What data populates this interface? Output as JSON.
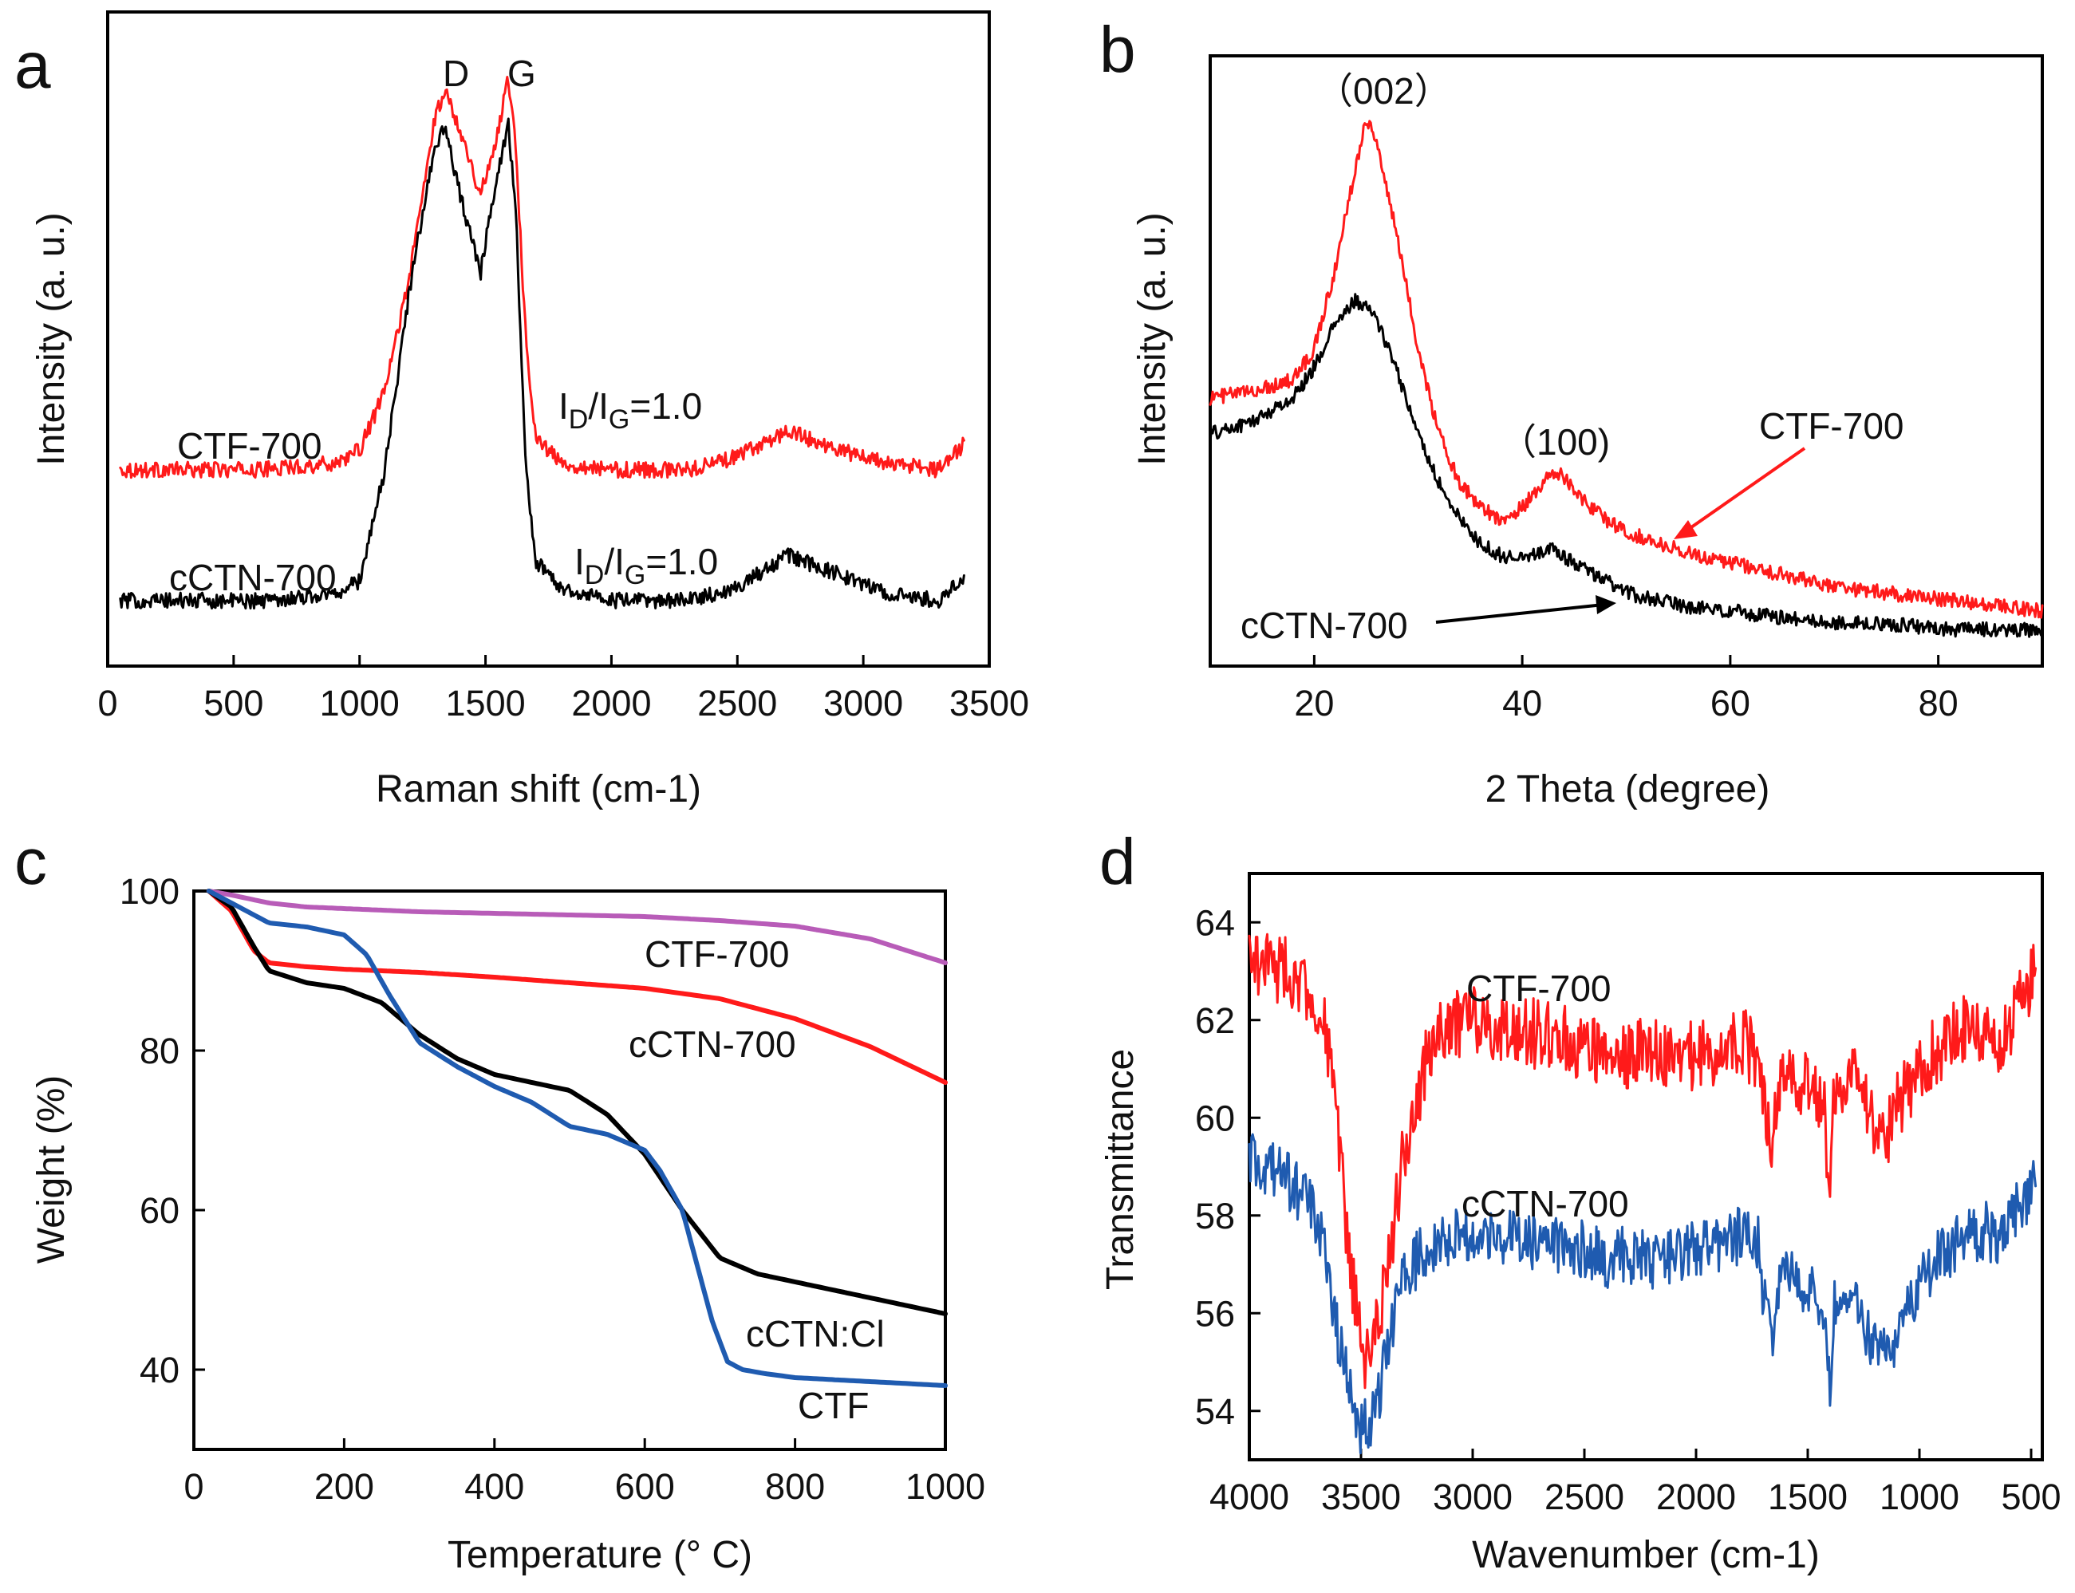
{
  "colors": {
    "red": "#ff1a1a",
    "black": "#000000",
    "blue": "#1f5bb0",
    "purple": "#b85cb8"
  },
  "chart_data": [
    {
      "id": "a",
      "panel_label": "a",
      "type": "line",
      "title": "",
      "xlabel": "Raman shift (cm-1)",
      "ylabel": "Intensity (a. u.)",
      "xlim": [
        0,
        3500
      ],
      "ylim": [
        0,
        1
      ],
      "xticks": [
        0,
        500,
        1000,
        1500,
        2000,
        2500,
        3000,
        3500
      ],
      "xtick_labels": [
        "0",
        "500",
        "1000",
        "1500",
        "2000",
        "2500",
        "3000",
        "3500"
      ],
      "yticks": [],
      "ytick_labels": [],
      "grid": false,
      "series": [
        {
          "name": "CTF-700",
          "color": "red",
          "noise": 0.012,
          "x": [
            50,
            300,
            600,
            900,
            1000,
            1100,
            1200,
            1300,
            1340,
            1400,
            1480,
            1540,
            1590,
            1620,
            1660,
            1700,
            1800,
            2000,
            2300,
            2500,
            2700,
            2900,
            3100,
            3300,
            3400
          ],
          "y": [
            0.3,
            0.3,
            0.3,
            0.31,
            0.33,
            0.42,
            0.6,
            0.84,
            0.88,
            0.82,
            0.72,
            0.8,
            0.9,
            0.8,
            0.5,
            0.35,
            0.31,
            0.3,
            0.3,
            0.32,
            0.36,
            0.33,
            0.31,
            0.3,
            0.34
          ]
        },
        {
          "name": "cCTN-700",
          "color": "black",
          "noise": 0.012,
          "x": [
            50,
            300,
            600,
            900,
            1000,
            1100,
            1200,
            1300,
            1340,
            1400,
            1480,
            1540,
            1590,
            1620,
            1660,
            1700,
            1800,
            2000,
            2300,
            2500,
            2700,
            2900,
            3100,
            3300,
            3400
          ],
          "y": [
            0.1,
            0.1,
            0.1,
            0.11,
            0.13,
            0.3,
            0.58,
            0.8,
            0.82,
            0.72,
            0.6,
            0.74,
            0.83,
            0.7,
            0.3,
            0.16,
            0.12,
            0.1,
            0.1,
            0.12,
            0.17,
            0.14,
            0.11,
            0.1,
            0.14
          ]
        }
      ],
      "series_labels": [
        "CTF-700",
        "cCTN-700"
      ],
      "annotations": [
        {
          "id": "peak_d",
          "text": "D"
        },
        {
          "id": "peak_g",
          "text": "G"
        }
      ],
      "ratio_annotations": [
        {
          "id": "ratio_ctf",
          "i": "I",
          "sub1": "D",
          "slash": "/I",
          "sub2": "G",
          "value": "=1.0"
        },
        {
          "id": "ratio_cctn",
          "i": "I",
          "sub1": "D",
          "slash": "/I",
          "sub2": "G",
          "value": "=1.0"
        }
      ]
    },
    {
      "id": "b",
      "panel_label": "b",
      "type": "line",
      "title": "",
      "xlabel": "2 Theta (degree)",
      "ylabel": "Intensity (a. u.)",
      "xlim": [
        10,
        90
      ],
      "ylim": [
        0,
        1
      ],
      "xticks": [
        20,
        40,
        60,
        80
      ],
      "xtick_labels": [
        "20",
        "40",
        "60",
        "80"
      ],
      "yticks": [],
      "ytick_labels": [],
      "grid": false,
      "series": [
        {
          "name": "CTF-700",
          "color": "red",
          "noise": 0.012,
          "x": [
            10,
            14,
            18,
            20,
            22,
            24,
            25,
            26,
            28,
            30,
            32,
            34,
            36,
            38,
            40,
            42,
            43,
            44,
            46,
            48,
            50,
            55,
            60,
            65,
            70,
            75,
            80,
            85,
            90
          ],
          "y": [
            0.44,
            0.45,
            0.47,
            0.52,
            0.65,
            0.82,
            0.9,
            0.86,
            0.7,
            0.52,
            0.38,
            0.3,
            0.26,
            0.24,
            0.26,
            0.3,
            0.32,
            0.31,
            0.27,
            0.24,
            0.22,
            0.19,
            0.17,
            0.15,
            0.13,
            0.12,
            0.11,
            0.1,
            0.09
          ]
        },
        {
          "name": "cCTN-700",
          "color": "black",
          "noise": 0.012,
          "x": [
            10,
            14,
            18,
            20,
            22,
            24,
            26,
            28,
            30,
            32,
            34,
            36,
            38,
            40,
            42,
            43,
            44,
            46,
            48,
            50,
            55,
            60,
            65,
            70,
            75,
            80,
            85,
            90
          ],
          "y": [
            0.38,
            0.4,
            0.44,
            0.49,
            0.56,
            0.6,
            0.57,
            0.48,
            0.38,
            0.3,
            0.24,
            0.2,
            0.18,
            0.18,
            0.19,
            0.19,
            0.18,
            0.16,
            0.14,
            0.12,
            0.1,
            0.09,
            0.08,
            0.07,
            0.07,
            0.06,
            0.06,
            0.06
          ]
        }
      ],
      "series_labels": [
        "CTF-700",
        "cCTN-700"
      ],
      "annotations": [
        {
          "id": "peak_002",
          "text": "（002）"
        },
        {
          "id": "peak_100",
          "text": "（100)"
        }
      ]
    },
    {
      "id": "c",
      "panel_label": "c",
      "type": "line",
      "title": "",
      "xlabel": "Temperature (° C)",
      "ylabel": "Weight (%)",
      "xlim": [
        0,
        1000
      ],
      "ylim": [
        30,
        100
      ],
      "xticks": [
        0,
        200,
        400,
        600,
        800,
        1000
      ],
      "xtick_labels": [
        "0",
        "200",
        "400",
        "600",
        "800",
        "1000"
      ],
      "yticks": [
        40,
        60,
        80,
        100
      ],
      "ytick_labels": [
        "40",
        "60",
        "80",
        "100"
      ],
      "grid": false,
      "series": [
        {
          "name": "CTF-700",
          "color": "purple",
          "noise": 0,
          "x": [
            20,
            50,
            100,
            150,
            200,
            300,
            400,
            500,
            600,
            700,
            800,
            900,
            1000
          ],
          "y": [
            100,
            99.5,
            98.5,
            98.0,
            97.8,
            97.4,
            97.2,
            97.0,
            96.8,
            96.3,
            95.6,
            94.0,
            91.0
          ]
        },
        {
          "name": "cCTN-700",
          "color": "red",
          "noise": 0,
          "x": [
            20,
            50,
            80,
            100,
            150,
            200,
            300,
            400,
            500,
            600,
            700,
            800,
            900,
            1000
          ],
          "y": [
            100,
            97.5,
            92.5,
            91.0,
            90.5,
            90.2,
            89.8,
            89.2,
            88.5,
            87.8,
            86.5,
            84.0,
            80.5,
            76.0
          ]
        },
        {
          "name": "cCTN:Cl",
          "color": "black",
          "noise": 0,
          "x": [
            20,
            50,
            80,
            100,
            150,
            200,
            250,
            300,
            350,
            400,
            450,
            500,
            550,
            600,
            650,
            700,
            750,
            800,
            900,
            1000
          ],
          "y": [
            100,
            98,
            93,
            90,
            88.5,
            87.8,
            86,
            82,
            79,
            77,
            76,
            75,
            72,
            67,
            60,
            54,
            52,
            51,
            49,
            47
          ]
        },
        {
          "name": "CTF",
          "color": "blue",
          "noise": 0,
          "x": [
            20,
            60,
            100,
            150,
            200,
            230,
            260,
            300,
            350,
            400,
            450,
            500,
            550,
            600,
            620,
            650,
            670,
            690,
            710,
            730,
            760,
            800,
            900,
            1000
          ],
          "y": [
            100,
            98,
            96,
            95.5,
            94.5,
            92,
            87,
            81,
            78,
            75.5,
            73.5,
            70.5,
            69.5,
            67.5,
            65,
            60,
            53,
            46,
            41,
            40,
            39.5,
            39,
            38.5,
            38
          ]
        }
      ],
      "series_labels": [
        "CTF-700",
        "cCTN-700",
        "cCTN:Cl",
        "CTF"
      ],
      "annotations": []
    },
    {
      "id": "d",
      "panel_label": "d",
      "type": "line",
      "title": "",
      "xlabel": "Wavenumber (cm-1)",
      "ylabel": "Transmittance",
      "xlim": [
        4000,
        450
      ],
      "ylim": [
        53,
        65
      ],
      "xticks": [
        4000,
        3500,
        3000,
        2500,
        2000,
        1500,
        1000,
        500
      ],
      "xtick_labels": [
        "4000",
        "3500",
        "3000",
        "2500",
        "2000",
        "1500",
        "1000",
        "500"
      ],
      "yticks": [
        54,
        56,
        58,
        60,
        62,
        64
      ],
      "ytick_labels": [
        "54",
        "56",
        "58",
        "60",
        "62",
        "64"
      ],
      "grid": false,
      "series": [
        {
          "name": "CTF-700",
          "color": "red",
          "noise": 0.06,
          "x": [
            4000,
            3900,
            3800,
            3700,
            3650,
            3600,
            3550,
            3500,
            3460,
            3420,
            3380,
            3300,
            3200,
            3100,
            3000,
            2800,
            2500,
            2400,
            2380,
            2360,
            2340,
            2200,
            2100,
            1900,
            1800,
            1720,
            1690,
            1660,
            1630,
            1600,
            1500,
            1430,
            1400,
            1380,
            1300,
            1250,
            1200,
            1150,
            1100,
            1000,
            900,
            800,
            700,
            650,
            600,
            550,
            500,
            480
          ],
          "y": [
            63.3,
            63.1,
            62.9,
            62.4,
            61.5,
            59.5,
            57.0,
            55.3,
            55.0,
            55.8,
            57.0,
            59.5,
            61.3,
            61.9,
            62.0,
            61.8,
            61.5,
            61.3,
            60.8,
            61.5,
            61.3,
            61.4,
            61.2,
            61.4,
            61.6,
            61.2,
            60.2,
            59.6,
            60.8,
            61.0,
            60.6,
            60.4,
            58.5,
            60.6,
            60.8,
            60.4,
            59.8,
            59.6,
            60.2,
            61.0,
            61.5,
            61.8,
            61.7,
            61.2,
            61.8,
            62.4,
            62.8,
            63.4
          ]
        },
        {
          "name": "cCTN-700",
          "color": "blue",
          "noise": 0.05,
          "x": [
            4000,
            3900,
            3800,
            3700,
            3650,
            3600,
            3550,
            3500,
            3460,
            3420,
            3380,
            3300,
            3200,
            3100,
            3000,
            2800,
            2500,
            2400,
            2380,
            2360,
            2200,
            2100,
            1900,
            1800,
            1720,
            1690,
            1660,
            1630,
            1600,
            1500,
            1430,
            1400,
            1380,
            1300,
            1250,
            1200,
            1150,
            1100,
            1000,
            900,
            800,
            700,
            650,
            600,
            550,
            500,
            480
          ],
          "y": [
            59.1,
            58.9,
            58.6,
            58.0,
            57.0,
            55.5,
            54.3,
            53.7,
            53.6,
            54.3,
            55.5,
            56.8,
            57.4,
            57.6,
            57.6,
            57.5,
            57.3,
            57.1,
            57.0,
            57.2,
            57.1,
            57.2,
            57.4,
            57.6,
            57.4,
            56.0,
            55.6,
            56.5,
            56.9,
            56.5,
            56.0,
            54.2,
            56.4,
            56.2,
            55.8,
            55.2,
            55.1,
            55.6,
            56.6,
            57.2,
            57.5,
            57.7,
            57.5,
            57.8,
            58.2,
            58.5,
            59.2
          ]
        }
      ],
      "series_labels": [
        "CTF-700",
        "cCTN-700"
      ],
      "annotations": []
    }
  ]
}
